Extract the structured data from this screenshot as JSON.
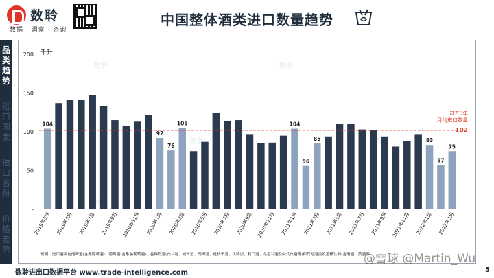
{
  "header": {
    "brand_name": "数聆",
    "brand_tagline": "数据 · 洞察 · 咨询",
    "title": "中国整体酒类进口数量趋势"
  },
  "sidebar": {
    "items": [
      {
        "label": "品类趋势",
        "active": true
      },
      {
        "label": "进口国家",
        "active": false
      },
      {
        "label": "进口省份",
        "active": false
      },
      {
        "label": "价格走势",
        "active": false
      }
    ]
  },
  "chart_data": {
    "type": "bar",
    "title": "",
    "ylabel": "千升",
    "ylim": [
      0,
      200
    ],
    "yticks": [
      "-",
      "50",
      "100",
      "150",
      "200"
    ],
    "categories": [
      "2019年3月",
      "2019年4月",
      "2019年5月",
      "2019年6月",
      "2019年7月",
      "2019年8月",
      "2019年9月",
      "2019年10月",
      "2019年11月",
      "2019年12月",
      "2020年1月",
      "2020年2月",
      "2020年3月",
      "2020年4月",
      "2020年5月",
      "2020年6月",
      "2020年7月",
      "2020年8月",
      "2020年9月",
      "2020年10月",
      "2020年11月",
      "2020年12月",
      "2021年1月",
      "2021年2月",
      "2021年3月",
      "2021年4月",
      "2021年5月",
      "2021年6月",
      "2021年7月",
      "2021年8月",
      "2021年9月",
      "2021年10月",
      "2021年11月",
      "2021年12月",
      "2022年1月",
      "2022年2月",
      "2022年3月"
    ],
    "xtick_labels": [
      "2019年3月",
      "",
      "2019年5月",
      "",
      "2019年7月",
      "",
      "2019年9月",
      "",
      "2019年11月",
      "",
      "2020年1月",
      "",
      "2020年3月",
      "",
      "2020年5月",
      "",
      "2020年7月",
      "",
      "2020年9月",
      "",
      "2020年11月",
      "",
      "2021年1月",
      "",
      "2021年3月",
      "",
      "2021年5月",
      "",
      "2021年7月",
      "",
      "2021年9月",
      "",
      "2021年11月",
      "",
      "2022年1月",
      "",
      "2022年3月"
    ],
    "values": [
      104,
      137,
      141,
      141,
      147,
      133,
      115,
      108,
      113,
      122,
      92,
      76,
      105,
      75,
      87,
      124,
      114,
      115,
      97,
      85,
      86,
      95,
      104,
      56,
      85,
      94,
      110,
      110,
      103,
      102,
      94,
      81,
      88,
      97,
      83,
      57,
      75
    ],
    "highlight_indices": [
      0,
      10,
      11,
      12,
      22,
      23,
      24,
      34,
      35,
      36
    ],
    "data_labels": {
      "0": "104",
      "10": "92",
      "11": "76",
      "12": "105",
      "22": "104",
      "23": "56",
      "24": "85",
      "34": "83",
      "35": "57",
      "36": "75"
    },
    "colors": {
      "dark": "#2b3a4e",
      "light": "#8ea3bd",
      "reference": "#d9381e"
    },
    "reference_line": {
      "value": 102,
      "label_line1": "过去3年",
      "label_line2": "月均进口数量",
      "value_label": "102"
    },
    "note": "说明：进口酒类包括啤酒(含无醇啤酒)、葡萄酒(含散装葡萄酒)、各种烈酒(白兰地、威士忌、朗姆酒、杜松子酒、伏特加、利口酒、龙舌兰酒及中式白酒等)和其他酒类及酒精饮料(含清酒、黄酒等)"
  },
  "footer": {
    "platform": "数聆进出口数据平台 www.trade-intelligence.com",
    "page": "5"
  },
  "watermark": "@雪球 @Martin_Wu"
}
